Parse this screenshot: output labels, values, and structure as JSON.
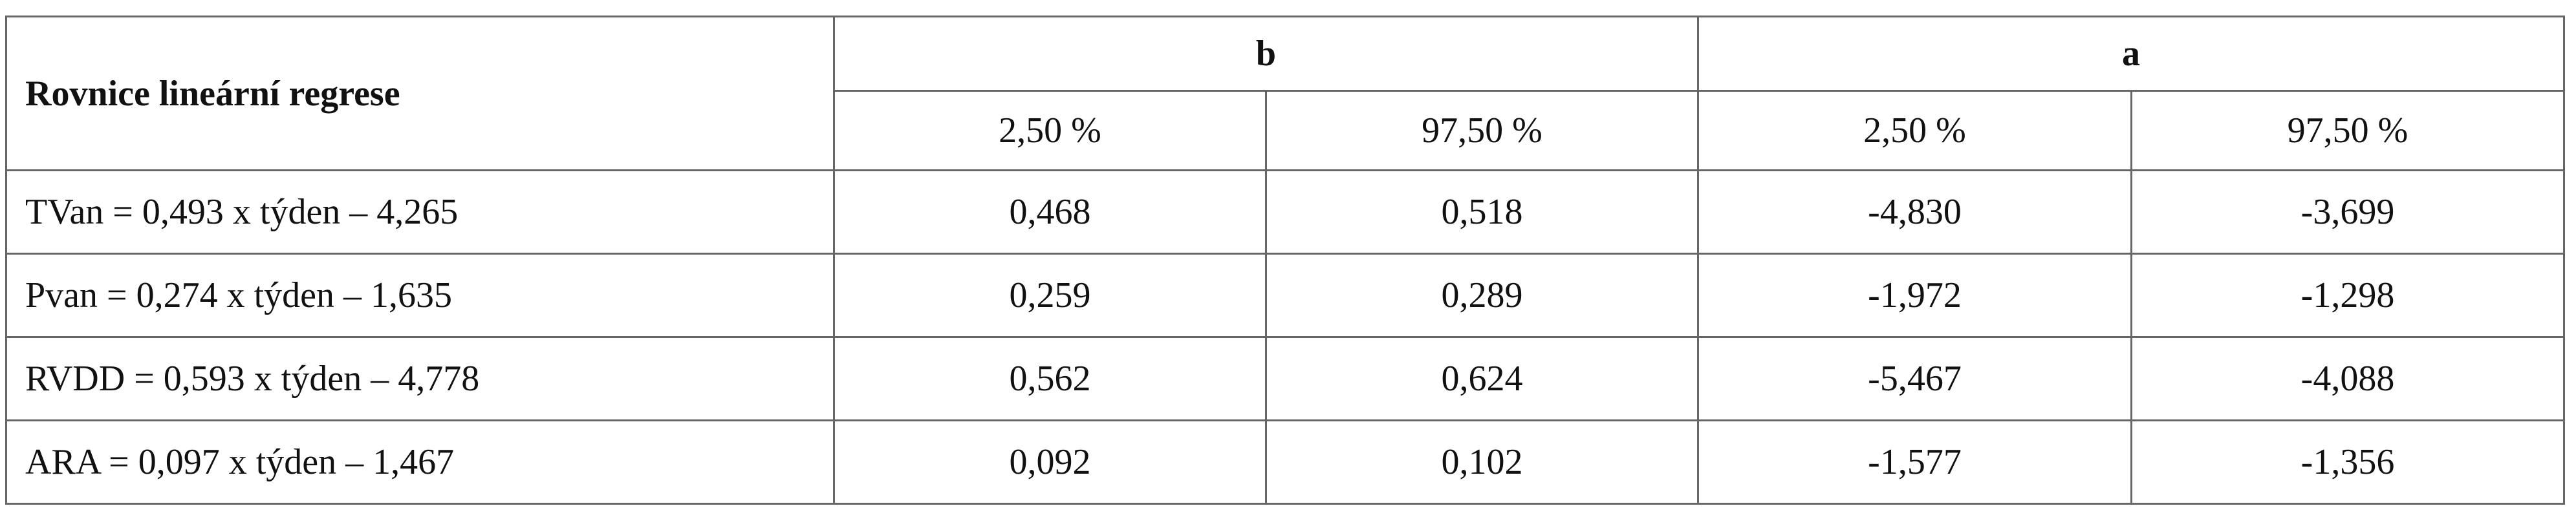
{
  "header": {
    "title": "Rovnice lineární regrese",
    "groups": [
      "b",
      "a"
    ],
    "subheaders": [
      "2,50 %",
      "97,50 %",
      "2,50 %",
      "97,50 %"
    ]
  },
  "table": {
    "rows": [
      [
        "TVan = 0,493 x týden – 4,265",
        "0,468",
        "0,518",
        "-4,830",
        "-3,699"
      ],
      [
        "Pvan = 0,274 x týden – 1,635",
        "0,259",
        "0,289",
        "-1,972",
        "-1,298"
      ],
      [
        "RVDD = 0,593 x týden – 4,778",
        "0,562",
        "0,624",
        "-5,467",
        "-4,088"
      ],
      [
        "ARA = 0,097 x týden – 1,467",
        "0,092",
        "0,102",
        "-1,577",
        "-1,356"
      ]
    ]
  }
}
